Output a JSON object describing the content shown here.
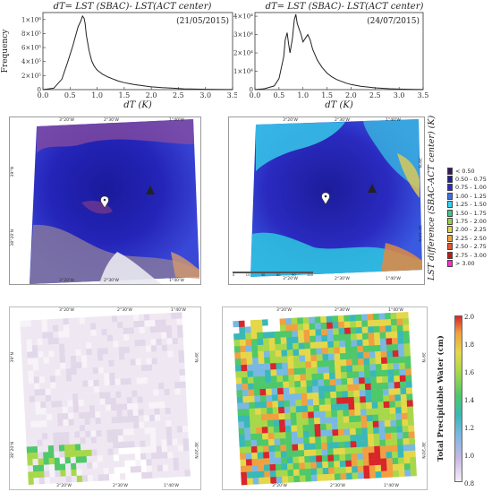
{
  "histograms": [
    {
      "title": "dT= LST (SBAC)- LST(ACT center)",
      "date_label": "(21/05/2015)",
      "ylabel": "Frequency",
      "xlabel": "dT (K)",
      "x_ticks": [
        "0.0",
        "0.5",
        "1.0",
        "1.5",
        "2.0",
        "2.5",
        "3.0",
        "3.5"
      ],
      "y_ticks": [
        "0",
        "2×10⁵",
        "4×10⁵",
        "6×10⁵",
        "8×10⁵",
        "1×10⁶"
      ]
    },
    {
      "title": "dT= LST (SBAC)- LST(ACT center)",
      "date_label": "(24/07/2015)",
      "ylabel": "",
      "xlabel": "dT (K)",
      "x_ticks": [
        "0.0",
        "0.5",
        "1.0",
        "1.5",
        "2.0",
        "2.5",
        "3.0",
        "3.5"
      ],
      "y_ticks": [
        "0",
        "1×10⁴",
        "2×10⁴",
        "3×10⁴",
        "4×10⁴"
      ]
    }
  ],
  "chart_data": [
    {
      "type": "line",
      "title": "dT= LST (SBAC)- LST(ACT center)",
      "annotation": "(21/05/2015)",
      "xlabel": "dT (K)",
      "ylabel": "Frequency",
      "xlim": [
        0,
        3.5
      ],
      "ylim": [
        0,
        1100000
      ],
      "series": [
        {
          "x": [
            0.0,
            0.2,
            0.35,
            0.45,
            0.55,
            0.6,
            0.65,
            0.7,
            0.73,
            0.76,
            0.78,
            0.8,
            0.85,
            0.9,
            0.95,
            1.0,
            1.05,
            1.1,
            1.2,
            1.3,
            1.4,
            1.5,
            1.6,
            1.7,
            1.8,
            1.9,
            2.0,
            2.2,
            2.4,
            2.6,
            2.8,
            3.0,
            3.2,
            3.5
          ],
          "y": [
            0,
            20000,
            150000,
            380000,
            620000,
            760000,
            900000,
            980000,
            1050000,
            1020000,
            940000,
            780000,
            560000,
            410000,
            330000,
            280000,
            250000,
            220000,
            180000,
            150000,
            120000,
            100000,
            85000,
            70000,
            60000,
            50000,
            40000,
            28000,
            20000,
            12000,
            8000,
            5000,
            3000,
            1000
          ]
        }
      ]
    },
    {
      "type": "line",
      "title": "dT= LST (SBAC)- LST(ACT center)",
      "annotation": "(24/07/2015)",
      "xlabel": "dT (K)",
      "xlim": [
        0,
        3.5
      ],
      "ylim": [
        0,
        42000
      ],
      "series": [
        {
          "x": [
            0.0,
            0.2,
            0.4,
            0.5,
            0.6,
            0.63,
            0.67,
            0.7,
            0.73,
            0.78,
            0.82,
            0.85,
            0.88,
            0.92,
            0.96,
            1.0,
            1.05,
            1.1,
            1.15,
            1.2,
            1.3,
            1.4,
            1.5,
            1.6,
            1.7,
            1.8,
            1.9,
            2.0,
            2.2,
            2.5,
            2.8,
            3.0,
            3.3,
            3.5
          ],
          "y": [
            0,
            500,
            2000,
            6000,
            18000,
            27000,
            31000,
            25000,
            20000,
            28000,
            38000,
            41000,
            36000,
            33000,
            30000,
            26000,
            28000,
            30000,
            27000,
            22000,
            16000,
            12000,
            9000,
            7000,
            5500,
            4500,
            3500,
            2800,
            1800,
            1000,
            500,
            300,
            150,
            50
          ]
        }
      ]
    },
    {
      "type": "heatmap",
      "colorbar_label": "LST difference (SBAC-ACT center) (K)",
      "legend_entries": [
        "< 0.50",
        "0.50 - 0.75",
        "0.75 - 1.00",
        "1.00 - 1.25",
        "1.25 - 1.50",
        "1.50 - 1.75",
        "1.75 - 2.00",
        "2.00 - 2.25",
        "2.25 - 2.50",
        "2.50 - 2.75",
        "2.75 - 3.00",
        "> 3.00"
      ],
      "legend_colors": [
        "#3a1660",
        "#1f1f8f",
        "#2b2bc8",
        "#3f6fe6",
        "#2ed6f0",
        "#3cc88c",
        "#9ad04a",
        "#e2d84a",
        "#f0a33a",
        "#e4532a",
        "#c41818",
        "#ff2cd0"
      ]
    },
    {
      "type": "heatmap",
      "colorbar_label": "Total Precipitable Water (cm)",
      "colorbar_range": [
        0.8,
        2.0
      ],
      "colorbar_ticks": [
        "0.8",
        "1.0",
        "1.2",
        "1.4",
        "1.6",
        "1.8",
        "2.0"
      ]
    }
  ],
  "lst_maps": {
    "lon_top": [
      "3°20'W",
      "2°30'W",
      "1°40'W"
    ],
    "lon_bottom": [
      "3°20'W",
      "2°30'W",
      "1°40'W"
    ],
    "lat_left": [
      "39°N",
      "38°20'N"
    ],
    "lat_right": [
      "39°N",
      "38°20'N"
    ],
    "scale_bar": [
      "0",
      "15",
      "30",
      "60",
      "90",
      "120"
    ]
  },
  "legend": {
    "title": "LST difference (SBAC-ACT center) (K)",
    "items": [
      {
        "label": "< 0.50",
        "color": "#3a1660"
      },
      {
        "label": "0.50 - 0.75",
        "color": "#1f1f8f"
      },
      {
        "label": "0.75 - 1.00",
        "color": "#2b2bc8"
      },
      {
        "label": "1.00 - 1.25",
        "color": "#3f6fe6"
      },
      {
        "label": "1.25 - 1.50",
        "color": "#2ed6f0"
      },
      {
        "label": "1.50 - 1.75",
        "color": "#3cc88c"
      },
      {
        "label": "1.75 - 2.00",
        "color": "#9ad04a"
      },
      {
        "label": "2.00 - 2.25",
        "color": "#e2d84a"
      },
      {
        "label": "2.25 - 2.50",
        "color": "#f0a33a"
      },
      {
        "label": "2.50 - 2.75",
        "color": "#e4532a"
      },
      {
        "label": "2.75 - 3.00",
        "color": "#c41818"
      },
      {
        "label": "> 3.00",
        "color": "#ff2cd0"
      }
    ]
  },
  "tpw_maps": {
    "lon_top": [
      "3°20'W",
      "2°30'W",
      "1°40'W"
    ],
    "lon_bottom": [
      "3°20'W",
      "2°30'W",
      "1°40'W"
    ],
    "lat_left": [
      "39°N",
      "38°20'N"
    ],
    "lat_right": [
      "39°N",
      "38°20'N"
    ]
  },
  "colorbar": {
    "title": "Total Precipitable Water (cm)",
    "ticks": [
      "2.0",
      "1.8",
      "1.6",
      "1.4",
      "1.2",
      "1.0",
      "0.8"
    ]
  }
}
